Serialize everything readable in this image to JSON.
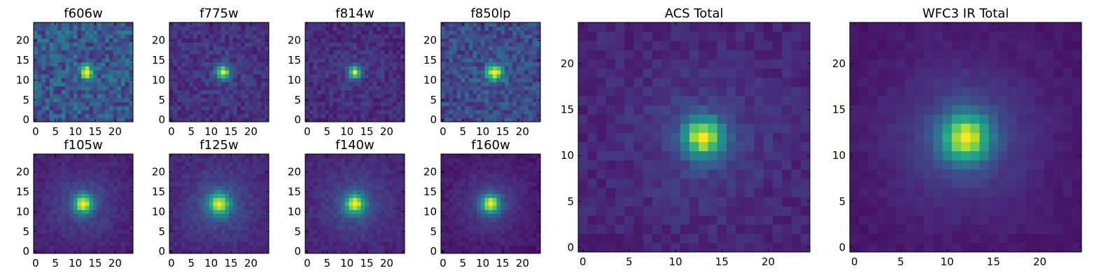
{
  "figure": {
    "description_colormap": "viridis",
    "layout": "two rows of four small per-filter stamps, plus two large combined stacks on the right"
  },
  "chart_data": [
    {
      "type": "heatmap",
      "title": "f606w",
      "row": "top",
      "grid_size": 25,
      "peak": [
        13,
        12
      ],
      "peak_width": 1.1,
      "noise": 0.32,
      "background": 0.35,
      "halo": 0.0,
      "seed": 11,
      "xticks": [
        0,
        5,
        10,
        15,
        20
      ],
      "yticks": [
        0,
        5,
        10,
        15,
        20
      ],
      "xlim": [
        -0.5,
        24.5
      ],
      "ylim": [
        -0.5,
        24.5
      ],
      "colormap": "viridis"
    },
    {
      "type": "heatmap",
      "title": "f775w",
      "row": "top",
      "grid_size": 25,
      "peak": [
        13,
        12
      ],
      "peak_width": 1.2,
      "noise": 0.16,
      "background": 0.18,
      "halo": 0.05,
      "seed": 23,
      "xticks": [
        0,
        5,
        10,
        15,
        20
      ],
      "yticks": [
        0,
        5,
        10,
        15,
        20
      ],
      "xlim": [
        -0.5,
        24.5
      ],
      "ylim": [
        -0.5,
        24.5
      ],
      "colormap": "viridis"
    },
    {
      "type": "heatmap",
      "title": "f814w",
      "row": "top",
      "grid_size": 25,
      "peak": [
        12,
        12
      ],
      "peak_width": 1.1,
      "noise": 0.15,
      "background": 0.16,
      "halo": 0.05,
      "seed": 37,
      "xticks": [
        0,
        5,
        10,
        15,
        20
      ],
      "yticks": [
        0,
        5,
        10,
        15,
        20
      ],
      "xlim": [
        -0.5,
        24.5
      ],
      "ylim": [
        -0.5,
        24.5
      ],
      "colormap": "viridis"
    },
    {
      "type": "heatmap",
      "title": "f850lp",
      "row": "top",
      "grid_size": 25,
      "peak": [
        13,
        12
      ],
      "peak_width": 1.4,
      "noise": 0.27,
      "background": 0.3,
      "halo": 0.05,
      "seed": 41,
      "xticks": [
        0,
        5,
        10,
        15,
        20
      ],
      "yticks": [
        0,
        5,
        10,
        15,
        20
      ],
      "xlim": [
        -0.5,
        24.5
      ],
      "ylim": [
        -0.5,
        24.5
      ],
      "colormap": "viridis"
    },
    {
      "type": "heatmap",
      "title": "f105w",
      "row": "bottom",
      "grid_size": 25,
      "peak": [
        12,
        12
      ],
      "peak_width": 1.6,
      "noise": 0.08,
      "background": 0.12,
      "halo": 0.18,
      "seed": 53,
      "xticks": [
        0,
        5,
        10,
        15,
        20
      ],
      "yticks": [
        0,
        5,
        10,
        15,
        20
      ],
      "xlim": [
        -0.5,
        24.5
      ],
      "ylim": [
        -0.5,
        24.5
      ],
      "colormap": "viridis"
    },
    {
      "type": "heatmap",
      "title": "f125w",
      "row": "bottom",
      "grid_size": 25,
      "peak": [
        12,
        12
      ],
      "peak_width": 1.9,
      "noise": 0.1,
      "background": 0.16,
      "halo": 0.22,
      "seed": 67,
      "xticks": [
        0,
        5,
        10,
        15,
        20
      ],
      "yticks": [
        0,
        5,
        10,
        15,
        20
      ],
      "xlim": [
        -0.5,
        24.5
      ],
      "ylim": [
        -0.5,
        24.5
      ],
      "colormap": "viridis"
    },
    {
      "type": "heatmap",
      "title": "f140w",
      "row": "bottom",
      "grid_size": 25,
      "peak": [
        12,
        12
      ],
      "peak_width": 1.7,
      "noise": 0.09,
      "background": 0.14,
      "halo": 0.2,
      "seed": 79,
      "xticks": [
        0,
        5,
        10,
        15,
        20
      ],
      "yticks": [
        0,
        5,
        10,
        15,
        20
      ],
      "xlim": [
        -0.5,
        24.5
      ],
      "ylim": [
        -0.5,
        24.5
      ],
      "colormap": "viridis"
    },
    {
      "type": "heatmap",
      "title": "f160w",
      "row": "bottom",
      "grid_size": 25,
      "peak": [
        12,
        12
      ],
      "peak_width": 1.6,
      "noise": 0.07,
      "background": 0.08,
      "halo": 0.18,
      "seed": 83,
      "xticks": [
        0,
        5,
        10,
        15,
        20
      ],
      "yticks": [
        0,
        5,
        10,
        15,
        20
      ],
      "xlim": [
        -0.5,
        24.5
      ],
      "ylim": [
        -0.5,
        24.5
      ],
      "colormap": "viridis"
    },
    {
      "type": "heatmap",
      "title": "ACS Total",
      "row": "large",
      "grid_size": 25,
      "peak": [
        13,
        12
      ],
      "peak_width": 1.5,
      "noise": 0.1,
      "background": 0.13,
      "halo": 0.1,
      "seed": 97,
      "xticks": [
        0,
        5,
        10,
        15,
        20
      ],
      "yticks": [
        0,
        5,
        10,
        15,
        20
      ],
      "xlim": [
        -0.5,
        24.5
      ],
      "ylim": [
        -0.5,
        24.5
      ],
      "colormap": "viridis"
    },
    {
      "type": "heatmap",
      "title": "WFC3 IR Total",
      "row": "large",
      "grid_size": 25,
      "peak": [
        12,
        12
      ],
      "peak_width": 1.8,
      "noise": 0.05,
      "background": 0.08,
      "halo": 0.22,
      "seed": 101,
      "xticks": [
        0,
        5,
        10,
        15,
        20
      ],
      "yticks": [
        0,
        5,
        10,
        15,
        20
      ],
      "xlim": [
        -0.5,
        24.5
      ],
      "ylim": [
        -0.5,
        24.5
      ],
      "colormap": "viridis"
    }
  ]
}
